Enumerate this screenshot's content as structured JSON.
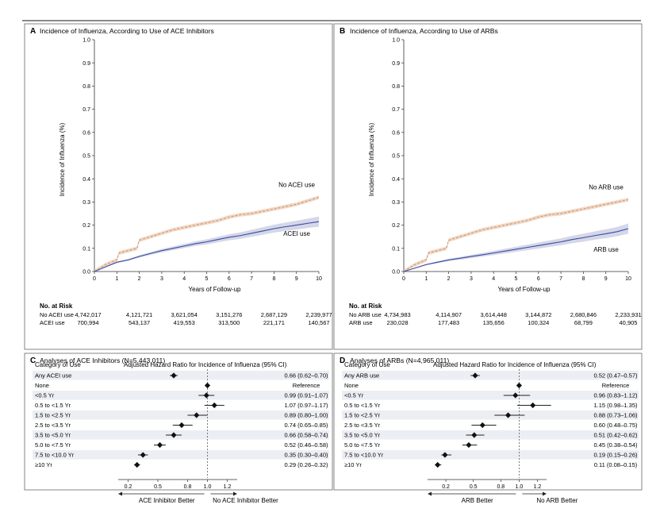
{
  "panels": {
    "A": {
      "letter": "A",
      "title": "Incidence of Influenza, According to Use of ACE Inhibitors"
    },
    "B": {
      "letter": "B",
      "title": "Incidence of Influenza, According to Use of ARBs"
    },
    "C": {
      "letter": "C",
      "title": "Analyses of ACE Inhibitors (N=5,443,011)"
    },
    "D": {
      "letter": "D",
      "title": "Analyses of ARBs (N=4,965,011)"
    }
  },
  "colors": {
    "no_use": "#d2956a",
    "use": "#3b4aa0",
    "ci_band": "#cfd3e6",
    "shade_row": "#eceef4",
    "frame": "#555555",
    "text": "#1a1a1a"
  },
  "chart_data": [
    {
      "id": "A",
      "type": "line",
      "xlabel": "Years of Follow-up",
      "ylabel": "Incidence of Influenza (%)",
      "xlim": [
        0,
        10
      ],
      "ylim": [
        0,
        1.0
      ],
      "x_ticks": [
        "0",
        "1",
        "2",
        "3",
        "4",
        "5",
        "6",
        "7",
        "8",
        "9",
        "10"
      ],
      "y_ticks": [
        "0.0",
        "0.1",
        "0.2",
        "0.3",
        "0.4",
        "0.5",
        "0.6",
        "0.7",
        "0.8",
        "0.9",
        "1.0"
      ],
      "series": [
        {
          "name": "No ACEI use",
          "style": "dashed",
          "x": [
            0,
            0.5,
            1,
            1.1,
            1.5,
            1.9,
            2,
            2.5,
            3,
            3.5,
            4,
            4.5,
            5,
            5.5,
            6,
            6.5,
            7,
            7.5,
            8,
            8.5,
            9,
            9.5,
            10
          ],
          "y": [
            0,
            0.03,
            0.05,
            0.08,
            0.09,
            0.1,
            0.135,
            0.15,
            0.165,
            0.18,
            0.19,
            0.2,
            0.21,
            0.22,
            0.235,
            0.245,
            0.25,
            0.26,
            0.27,
            0.28,
            0.29,
            0.305,
            0.32
          ],
          "band_width": 0.008
        },
        {
          "name": "ACEI use",
          "style": "solid",
          "x": [
            0,
            0.5,
            1,
            1.5,
            2,
            2.5,
            3,
            3.5,
            4,
            4.5,
            5,
            5.5,
            6,
            6.5,
            7,
            7.5,
            8,
            8.5,
            9,
            9.5,
            10
          ],
          "y": [
            0,
            0.02,
            0.04,
            0.05,
            0.065,
            0.078,
            0.09,
            0.1,
            0.11,
            0.12,
            0.128,
            0.138,
            0.148,
            0.155,
            0.165,
            0.175,
            0.185,
            0.193,
            0.2,
            0.208,
            0.215
          ],
          "band_width": [
            0,
            0.002,
            0.003,
            0.004,
            0.005,
            0.006,
            0.007,
            0.008,
            0.009,
            0.01,
            0.011,
            0.012,
            0.013,
            0.014,
            0.015,
            0.016,
            0.017,
            0.018,
            0.019,
            0.02,
            0.022
          ]
        }
      ],
      "risk_table": {
        "heading": "No. at Risk",
        "rows": [
          {
            "label": "No ACEI use",
            "values": [
              "4,742,017",
              "4,121,721",
              "3,621,054",
              "3,151,276",
              "2,687,129",
              "2,239,977"
            ]
          },
          {
            "label": "ACEI use",
            "values": [
              "700,994",
              "543,137",
              "419,553",
              "313,500",
              "221,171",
              "140,567"
            ]
          }
        ]
      }
    },
    {
      "id": "B",
      "type": "line",
      "xlabel": "Years of Follow-up",
      "ylabel": "Incidence of Influenza (%)",
      "xlim": [
        0,
        10
      ],
      "ylim": [
        0,
        1.0
      ],
      "x_ticks": [
        "0",
        "1",
        "2",
        "3",
        "4",
        "5",
        "6",
        "7",
        "8",
        "9",
        "10"
      ],
      "y_ticks": [
        "0.0",
        "0.1",
        "0.2",
        "0.3",
        "0.4",
        "0.5",
        "0.6",
        "0.7",
        "0.8",
        "0.9",
        "1.0"
      ],
      "series": [
        {
          "name": "No ARB use",
          "style": "dashed",
          "x": [
            0,
            0.5,
            1,
            1.1,
            1.5,
            1.9,
            2,
            2.5,
            3,
            3.5,
            4,
            4.5,
            5,
            5.5,
            6,
            6.5,
            7,
            7.5,
            8,
            8.5,
            9,
            9.5,
            10
          ],
          "y": [
            0,
            0.03,
            0.05,
            0.08,
            0.09,
            0.1,
            0.135,
            0.15,
            0.165,
            0.18,
            0.19,
            0.2,
            0.21,
            0.22,
            0.235,
            0.245,
            0.25,
            0.26,
            0.27,
            0.28,
            0.29,
            0.3,
            0.31
          ],
          "band_width": 0.008
        },
        {
          "name": "ARB use",
          "style": "solid",
          "x": [
            0,
            0.5,
            1,
            1.5,
            2,
            2.5,
            3,
            3.5,
            4,
            4.5,
            5,
            5.5,
            6,
            6.5,
            7,
            7.5,
            8,
            8.5,
            9,
            9.5,
            10
          ],
          "y": [
            0,
            0.015,
            0.03,
            0.04,
            0.05,
            0.057,
            0.065,
            0.072,
            0.08,
            0.088,
            0.096,
            0.104,
            0.112,
            0.12,
            0.128,
            0.138,
            0.146,
            0.155,
            0.163,
            0.172,
            0.185
          ],
          "band_width": [
            0,
            0.002,
            0.003,
            0.004,
            0.005,
            0.006,
            0.007,
            0.008,
            0.009,
            0.01,
            0.011,
            0.012,
            0.013,
            0.014,
            0.015,
            0.016,
            0.017,
            0.018,
            0.019,
            0.02,
            0.022
          ]
        }
      ],
      "risk_table": {
        "heading": "No. at Risk",
        "rows": [
          {
            "label": "No ARB use",
            "values": [
              "4,734,983",
              "4,114,907",
              "3,614,448",
              "3,144,872",
              "2,680,846",
              "2,233,931"
            ]
          },
          {
            "label": "ARB use",
            "values": [
              "230,028",
              "177,483",
              "135,656",
              "100,324",
              "68,799",
              "40,905"
            ]
          }
        ]
      }
    },
    {
      "id": "C",
      "type": "forest",
      "column_headers": [
        "Category of Use",
        "Adjusted Hazard Ratio for Incidence of Influenza (95% CI)"
      ],
      "xlim": [
        0.1,
        1.3
      ],
      "x_ticks": [
        "0.2",
        "0.5",
        "0.8",
        "1.0",
        "1.2"
      ],
      "x_tick_values": [
        0.2,
        0.5,
        0.8,
        1.0,
        1.2
      ],
      "left_label": "ACE Inhibitor Better",
      "right_label": "No ACE Inhibitor Better",
      "rows": [
        {
          "label": "Any ACEI use",
          "hr": 0.66,
          "lo": 0.62,
          "hi": 0.7,
          "text": "0.66 (0.62–0.70)"
        },
        {
          "label": "None",
          "hr": 1.0,
          "lo": 1.0,
          "hi": 1.0,
          "text": "Reference"
        },
        {
          "label": "<0.5 Yr",
          "hr": 0.99,
          "lo": 0.91,
          "hi": 1.07,
          "text": "0.99 (0.91–1.07)"
        },
        {
          "label": "0.5 to <1.5 Yr",
          "hr": 1.07,
          "lo": 0.97,
          "hi": 1.17,
          "text": "1.07 (0.97–1.17)"
        },
        {
          "label": "1.5 to <2.5 Yr",
          "hr": 0.89,
          "lo": 0.8,
          "hi": 1.0,
          "text": "0.89 (0.80–1.00)"
        },
        {
          "label": "2.5 to <3.5 Yr",
          "hr": 0.74,
          "lo": 0.65,
          "hi": 0.85,
          "text": "0.74 (0.65–0.85)"
        },
        {
          "label": "3.5 to <5.0 Yr",
          "hr": 0.66,
          "lo": 0.58,
          "hi": 0.74,
          "text": "0.66 (0.58–0.74)"
        },
        {
          "label": "5.0 to <7.5 Yr",
          "hr": 0.52,
          "lo": 0.46,
          "hi": 0.58,
          "text": "0.52 (0.46–0.58)"
        },
        {
          "label": "7.5 to <10.0 Yr",
          "hr": 0.35,
          "lo": 0.3,
          "hi": 0.4,
          "text": "0.35 (0.30–0.40)"
        },
        {
          "label": "≥10 Yr",
          "hr": 0.29,
          "lo": 0.26,
          "hi": 0.32,
          "text": "0.29 (0.26–0.32)"
        }
      ]
    },
    {
      "id": "D",
      "type": "forest",
      "column_headers": [
        "Category of Use",
        "Adjusted Hazard Ratio for Incidence of Influenza (95% CI)"
      ],
      "xlim": [
        0.0,
        1.3
      ],
      "x_ticks": [
        "0.2",
        "0.5",
        "0.8",
        "1.0",
        "1.2"
      ],
      "x_tick_values": [
        0.2,
        0.5,
        0.8,
        1.0,
        1.2
      ],
      "left_label": "ARB Better",
      "right_label": "No ARB Better",
      "rows": [
        {
          "label": "Any ARB use",
          "hr": 0.52,
          "lo": 0.47,
          "hi": 0.57,
          "text": "0.52 (0.47–0.57)"
        },
        {
          "label": "None",
          "hr": 1.0,
          "lo": 1.0,
          "hi": 1.0,
          "text": "Reference"
        },
        {
          "label": "<0.5 Yr",
          "hr": 0.96,
          "lo": 0.83,
          "hi": 1.12,
          "text": "0.96 (0.83–1.12)"
        },
        {
          "label": "0.5 to <1.5 Yr",
          "hr": 1.15,
          "lo": 0.98,
          "hi": 1.35,
          "text": "1.15 (0.98–1.35)"
        },
        {
          "label": "1.5 to <2.5 Yr",
          "hr": 0.88,
          "lo": 0.73,
          "hi": 1.06,
          "text": "0.88 (0.73–1.06)"
        },
        {
          "label": "2.5 to <3.5 Yr",
          "hr": 0.6,
          "lo": 0.48,
          "hi": 0.75,
          "text": "0.60 (0.48–0.75)"
        },
        {
          "label": "3.5 to <5.0 Yr",
          "hr": 0.51,
          "lo": 0.42,
          "hi": 0.62,
          "text": "0.51 (0.42–0.62)"
        },
        {
          "label": "5.0 to <7.5 Yr",
          "hr": 0.45,
          "lo": 0.38,
          "hi": 0.54,
          "text": "0.45 (0.38–0.54)"
        },
        {
          "label": "7.5 to <10.0 Yr",
          "hr": 0.19,
          "lo": 0.15,
          "hi": 0.26,
          "text": "0.19 (0.15–0.26)"
        },
        {
          "label": "≥10 Yr",
          "hr": 0.11,
          "lo": 0.08,
          "hi": 0.15,
          "text": "0.11 (0.08–0.15)"
        }
      ]
    }
  ]
}
